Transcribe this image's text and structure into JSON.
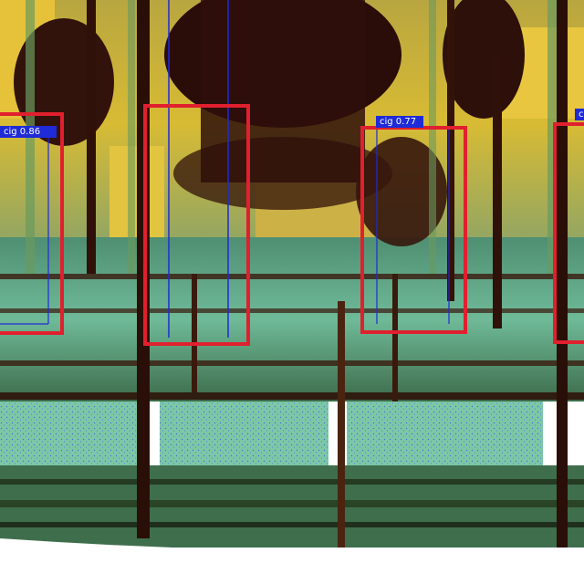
{
  "image": {
    "description": "X-ray / radiographic scan of a cargo structure with colored tint (yellow, teal, dark brown), overlaid with object-detection boxes",
    "colors": {
      "bbox_outline": "#e0202e",
      "label_background": "#1f2bd6",
      "label_text": "#ffffff",
      "tint_yellow": "#e2c032",
      "tint_teal": "#66b89c",
      "tint_dark": "#3a1510"
    }
  },
  "detections": [
    {
      "label": "cig 0.86",
      "class": "cig",
      "confidence": 0.86
    },
    {
      "label": "cig 0.77",
      "class": "cig",
      "confidence": 0.77
    },
    {
      "label": "c",
      "class": "c",
      "confidence": null
    },
    {
      "label": "",
      "class": "",
      "confidence": null
    }
  ]
}
